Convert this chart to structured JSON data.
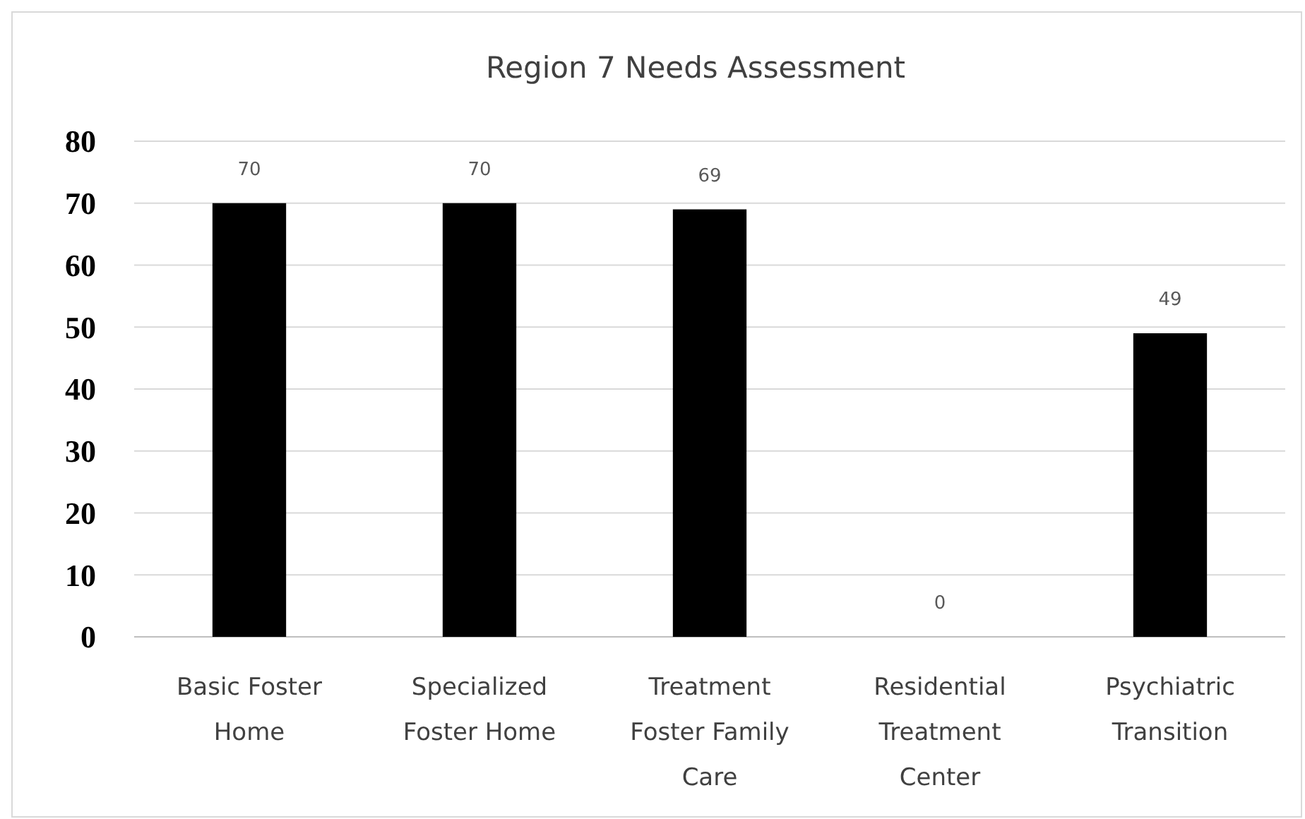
{
  "chart_data": {
    "type": "bar",
    "title": "Region 7 Needs Assessment",
    "categories": [
      "Basic Foster Home",
      "Specialized Foster Home",
      "Treatment Foster Family Care",
      "Residential Treatment Center",
      "Psychiatric Transition"
    ],
    "values": [
      70,
      70,
      69,
      0,
      49
    ],
    "color": "#000000",
    "ylim": [
      0,
      80
    ],
    "yticks": [
      0,
      10,
      20,
      30,
      40,
      50,
      60,
      70,
      80
    ],
    "grid": "y",
    "data_labels": true
  }
}
